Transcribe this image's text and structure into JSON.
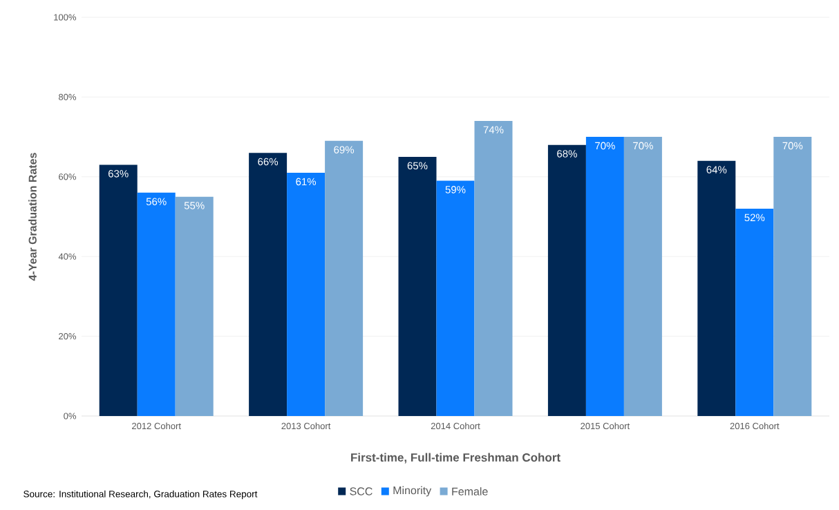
{
  "chart_data": {
    "type": "bar",
    "xlabel": "First-time, Full-time Freshman Cohort",
    "ylabel": "4-Year Graduation Rates",
    "categories": [
      "2012 Cohort",
      "2013 Cohort",
      "2014 Cohort",
      "2015 Cohort",
      "2016 Cohort"
    ],
    "series": [
      {
        "name": "SCC",
        "color": "#002855",
        "values": [
          63,
          66,
          65,
          68,
          64
        ],
        "value_labels": [
          "63%",
          "66%",
          "65%",
          "68%",
          "64%"
        ]
      },
      {
        "name": "Minority",
        "color": "#0a7cff",
        "values": [
          56,
          61,
          59,
          70,
          52
        ],
        "value_labels": [
          "56%",
          "61%",
          "59%",
          "70%",
          "52%"
        ]
      },
      {
        "name": "Female",
        "color": "#7aaad4",
        "values": [
          55,
          69,
          74,
          70,
          70
        ],
        "value_labels": [
          "55%",
          "69%",
          "74%",
          "70%",
          "70%"
        ]
      }
    ],
    "ylim": [
      0,
      100
    ],
    "yticks": [
      {
        "value": 0,
        "label": "0%"
      },
      {
        "value": 20,
        "label": "20%"
      },
      {
        "value": 40,
        "label": "40%"
      },
      {
        "value": 60,
        "label": "60%"
      },
      {
        "value": 80,
        "label": "80%"
      },
      {
        "value": 100,
        "label": "100%"
      }
    ],
    "grid": "y",
    "legend": "bottom",
    "annotations": [
      "Source: Institutional Research, Graduation Rates Report"
    ]
  }
}
